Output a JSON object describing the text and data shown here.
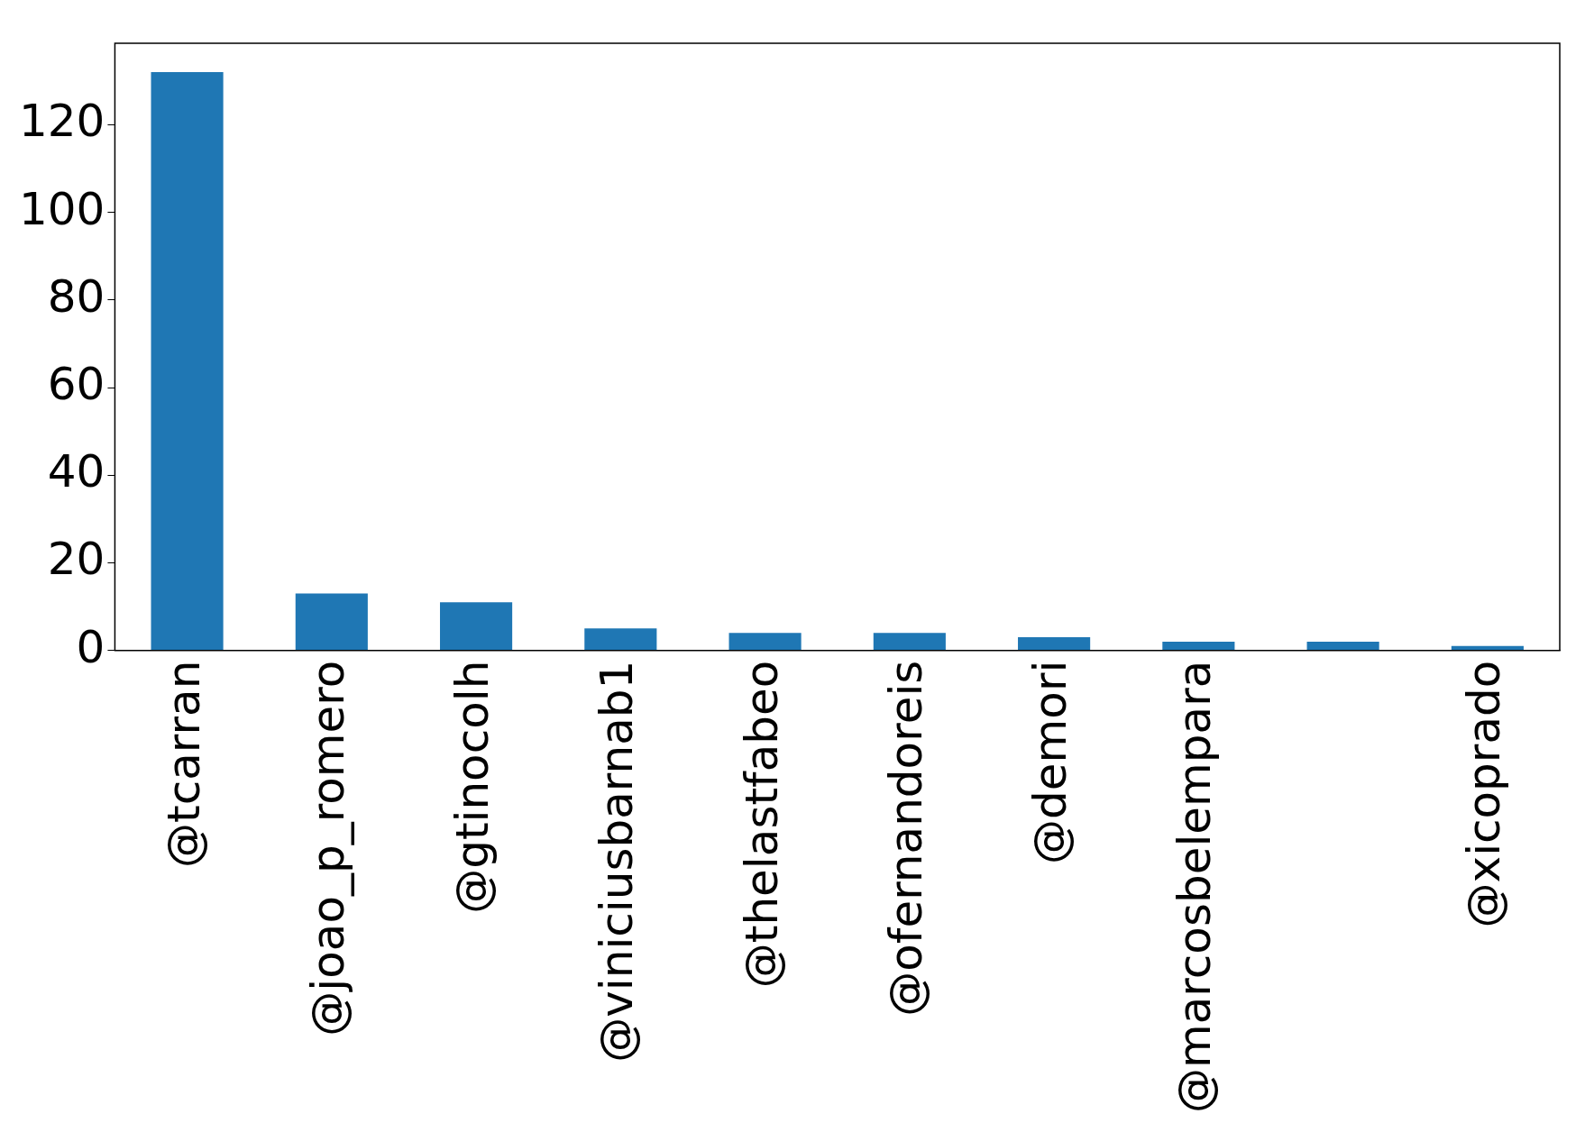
{
  "chart_data": {
    "type": "bar",
    "categories": [
      "@tcarran",
      "@joao_p_romero",
      "@gtinocolh",
      "@viniciusbarnab1",
      "@thelastfabeo",
      "@ofernandoreis",
      "@demori",
      "@marcosbelempara",
      null,
      "@xicoprado"
    ],
    "values": [
      132,
      13,
      11,
      5,
      4,
      4,
      3,
      2,
      2,
      1
    ],
    "color": "#1f77b4",
    "ylim": [
      0,
      138.6
    ],
    "yticks": [
      0,
      20,
      40,
      60,
      80,
      100,
      120
    ],
    "grid": false,
    "legend": false
  }
}
